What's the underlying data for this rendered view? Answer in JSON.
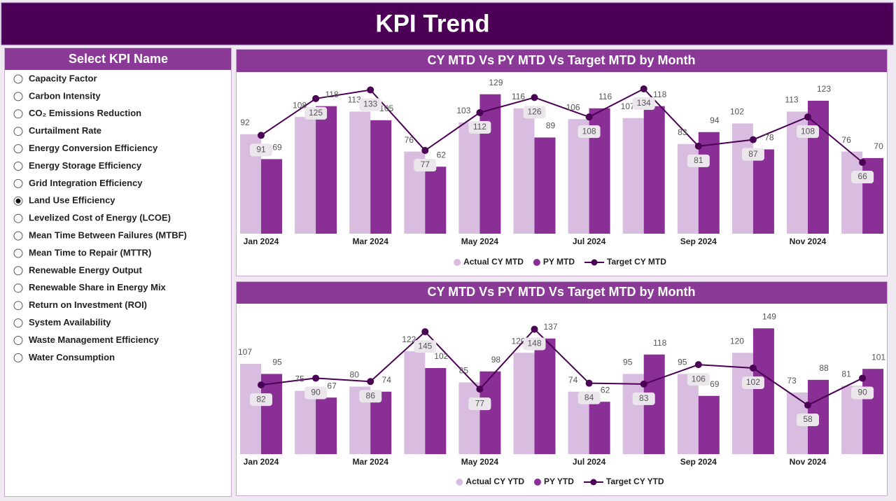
{
  "header": {
    "title": "KPI Trend"
  },
  "slicer": {
    "title": "Select KPI Name",
    "selected_index": 7,
    "items": [
      "Capacity Factor",
      "Carbon Intensity",
      "CO₂ Emissions Reduction",
      "Curtailment Rate",
      "Energy Conversion Efficiency",
      "Energy Storage Efficiency",
      "Grid Integration Efficiency",
      "Land Use Efficiency",
      "Levelized Cost of Energy (LCOE)",
      "Mean Time Between Failures (MTBF)",
      "Mean Time to Repair (MTTR)",
      "Renewable Energy Output",
      "Renewable Share in Energy Mix",
      "Return on Investment (ROI)",
      "System Availability",
      "Waste Management Efficiency",
      "Water Consumption"
    ]
  },
  "chart_data": [
    {
      "type": "combo",
      "title": "CY MTD Vs PY MTD Vs Target MTD by Month",
      "categories": [
        "Jan 2024",
        null,
        "Mar 2024",
        null,
        "May 2024",
        null,
        "Jul 2024",
        null,
        "Sep 2024",
        null,
        "Nov 2024",
        null
      ],
      "ylim": [
        0,
        145
      ],
      "series": [
        {
          "name": "Actual CY MTD",
          "type": "bar",
          "color": "#d8bde0",
          "values": [
            92,
            108,
            113,
            76,
            103,
            116,
            106,
            107,
            83,
            102,
            113,
            76
          ]
        },
        {
          "name": "PY MTD",
          "type": "bar",
          "color": "#8a2f96",
          "values": [
            69,
            118,
            105,
            62,
            129,
            89,
            116,
            118,
            94,
            78,
            123,
            70
          ]
        },
        {
          "name": "Target CY MTD",
          "type": "line",
          "color": "#4b0055",
          "values": [
            91,
            125,
            133,
            77,
            112,
            126,
            108,
            134,
            81,
            87,
            108,
            66
          ]
        }
      ]
    },
    {
      "type": "combo",
      "title": "CY MTD Vs PY MTD Vs Target MTD by Month",
      "categories": [
        "Jan 2024",
        null,
        "Mar 2024",
        null,
        "May 2024",
        null,
        "Jul 2024",
        null,
        "Sep 2024",
        null,
        "Nov 2024",
        null
      ],
      "ylim": [
        0,
        160
      ],
      "series": [
        {
          "name": "Actual CY YTD",
          "type": "bar",
          "color": "#d8bde0",
          "values": [
            107,
            75,
            80,
            122,
            85,
            120,
            74,
            95,
            95,
            120,
            73,
            81
          ]
        },
        {
          "name": "PY YTD",
          "type": "bar",
          "color": "#8a2f96",
          "values": [
            95,
            67,
            74,
            102,
            98,
            137,
            62,
            118,
            69,
            149,
            88,
            101
          ]
        },
        {
          "name": "Target CY YTD",
          "type": "line",
          "color": "#4b0055",
          "values": [
            82,
            90,
            86,
            145,
            77,
            148,
            84,
            83,
            106,
            102,
            58,
            90
          ]
        }
      ]
    }
  ]
}
